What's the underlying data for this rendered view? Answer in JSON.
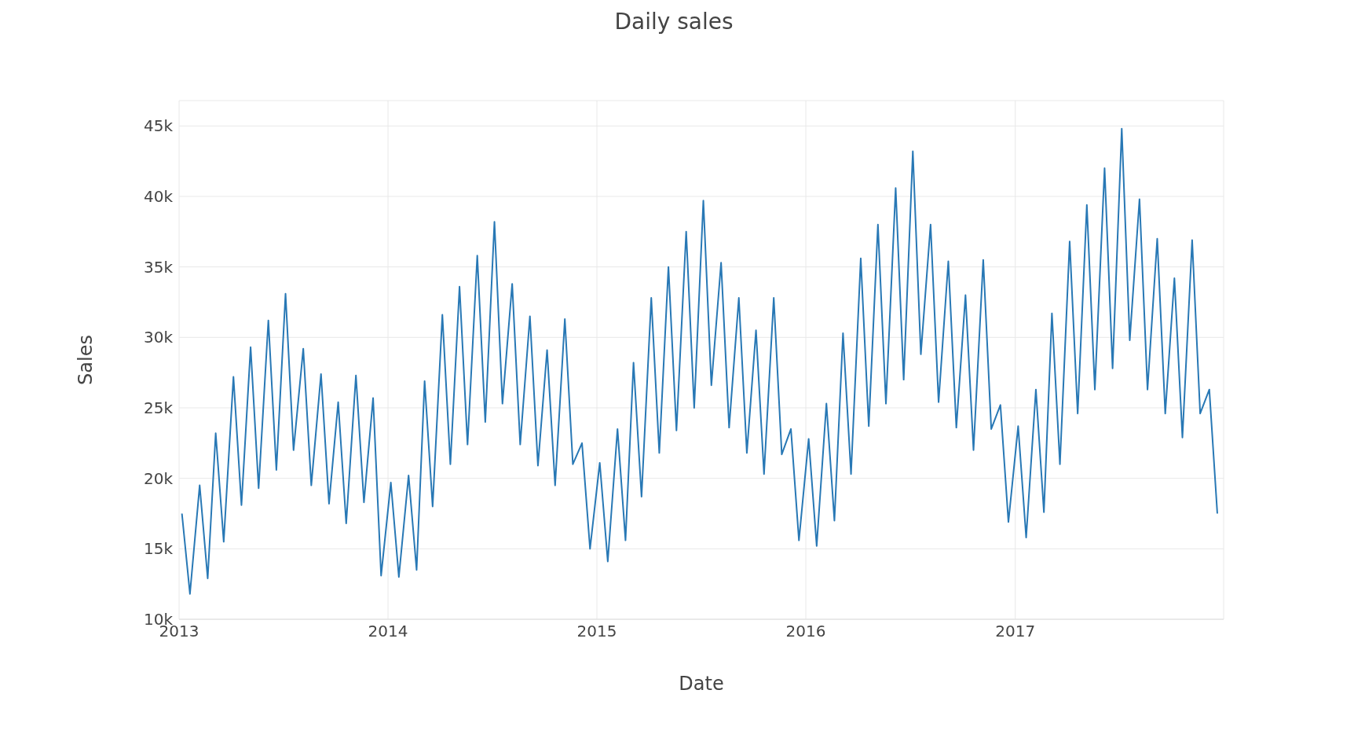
{
  "chart_data": {
    "type": "line",
    "title": "Daily sales",
    "xlabel": "Date",
    "ylabel": "Sales",
    "grid": true,
    "xlim": [
      "2013-01-01",
      "2017-12-31"
    ],
    "xticks": [
      {
        "value": "2013-01-01",
        "label": "2013"
      },
      {
        "value": "2014-01-01",
        "label": "2014"
      },
      {
        "value": "2015-01-01",
        "label": "2015"
      },
      {
        "value": "2016-01-01",
        "label": "2016"
      },
      {
        "value": "2017-01-01",
        "label": "2017"
      }
    ],
    "ylim": [
      10000,
      46800
    ],
    "yticks": [
      {
        "value": 10000,
        "label": "10k"
      },
      {
        "value": 15000,
        "label": "15k"
      },
      {
        "value": 20000,
        "label": "20k"
      },
      {
        "value": 25000,
        "label": "25k"
      },
      {
        "value": 30000,
        "label": "30k"
      },
      {
        "value": 35000,
        "label": "35k"
      },
      {
        "value": 40000,
        "label": "40k"
      },
      {
        "value": 45000,
        "label": "45k"
      }
    ],
    "x": [
      "2013-01-06",
      "2013-01-20",
      "2013-02-06",
      "2013-02-20",
      "2013-03-06",
      "2013-03-20",
      "2013-04-06",
      "2013-04-20",
      "2013-05-06",
      "2013-05-20",
      "2013-06-06",
      "2013-06-20",
      "2013-07-06",
      "2013-07-20",
      "2013-08-06",
      "2013-08-20",
      "2013-09-06",
      "2013-09-20",
      "2013-10-06",
      "2013-10-20",
      "2013-11-06",
      "2013-11-20",
      "2013-12-06",
      "2013-12-20",
      "2014-01-06",
      "2014-01-20",
      "2014-02-06",
      "2014-02-20",
      "2014-03-06",
      "2014-03-20",
      "2014-04-06",
      "2014-04-20",
      "2014-05-06",
      "2014-05-20",
      "2014-06-06",
      "2014-06-20",
      "2014-07-06",
      "2014-07-20",
      "2014-08-06",
      "2014-08-20",
      "2014-09-06",
      "2014-09-20",
      "2014-10-06",
      "2014-10-20",
      "2014-11-06",
      "2014-11-20",
      "2014-12-06",
      "2014-12-20",
      "2015-01-06",
      "2015-01-20",
      "2015-02-06",
      "2015-02-20",
      "2015-03-06",
      "2015-03-20",
      "2015-04-06",
      "2015-04-20",
      "2015-05-06",
      "2015-05-20",
      "2015-06-06",
      "2015-06-20",
      "2015-07-06",
      "2015-07-20",
      "2015-08-06",
      "2015-08-20",
      "2015-09-06",
      "2015-09-20",
      "2015-10-06",
      "2015-10-20",
      "2015-11-06",
      "2015-11-20",
      "2015-12-06",
      "2015-12-20",
      "2016-01-06",
      "2016-01-20",
      "2016-02-06",
      "2016-02-20",
      "2016-03-06",
      "2016-03-20",
      "2016-04-06",
      "2016-04-20",
      "2016-05-06",
      "2016-05-20",
      "2016-06-06",
      "2016-06-20",
      "2016-07-06",
      "2016-07-20",
      "2016-08-06",
      "2016-08-20",
      "2016-09-06",
      "2016-09-20",
      "2016-10-06",
      "2016-10-20",
      "2016-11-06",
      "2016-11-20",
      "2016-12-06",
      "2016-12-20",
      "2017-01-06",
      "2017-01-20",
      "2017-02-06",
      "2017-02-20",
      "2017-03-06",
      "2017-03-20",
      "2017-04-06",
      "2017-04-20",
      "2017-05-06",
      "2017-05-20",
      "2017-06-06",
      "2017-06-20",
      "2017-07-06",
      "2017-07-20",
      "2017-08-06",
      "2017-08-20",
      "2017-09-06",
      "2017-09-20",
      "2017-10-06",
      "2017-10-20",
      "2017-11-06",
      "2017-11-20",
      "2017-12-06",
      "2017-12-20"
    ],
    "series": [
      {
        "color": "#2878b5",
        "values": [
          17500,
          11800,
          19500,
          12900,
          23200,
          15500,
          27200,
          18100,
          29300,
          19300,
          31200,
          20600,
          33100,
          22000,
          29200,
          19500,
          27400,
          18200,
          25400,
          16800,
          27300,
          18300,
          25700,
          13100,
          19700,
          13000,
          20200,
          13500,
          26900,
          18000,
          31600,
          21000,
          33600,
          22400,
          35800,
          24000,
          38200,
          25300,
          33800,
          22400,
          31500,
          20900,
          29100,
          19500,
          31300,
          21000,
          22500,
          15000,
          21100,
          14100,
          23500,
          15600,
          28200,
          18700,
          32800,
          21800,
          35000,
          23400,
          37500,
          25000,
          39700,
          26600,
          35300,
          23600,
          32800,
          21800,
          30500,
          20300,
          32800,
          21700,
          23500,
          15600,
          22800,
          15200,
          25300,
          17000,
          30300,
          20300,
          35600,
          23700,
          38000,
          25300,
          40600,
          27000,
          43200,
          28800,
          38000,
          25400,
          35400,
          23600,
          33000,
          22000,
          35500,
          23500,
          25200,
          16900,
          23700,
          15800,
          26300,
          17600,
          31700,
          21000,
          36800,
          24600,
          39400,
          26300,
          42000,
          27800,
          44800,
          29800,
          39800,
          26300,
          37000,
          24600,
          34200,
          22900,
          36900,
          24600,
          26300,
          17500
        ]
      }
    ]
  }
}
